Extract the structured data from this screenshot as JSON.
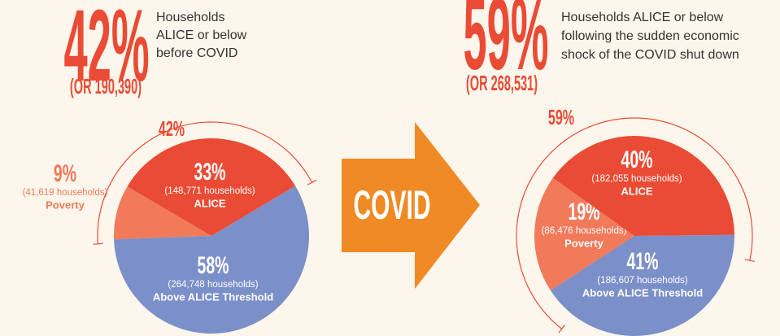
{
  "chart_data": [
    {
      "type": "pie",
      "headline": "42%",
      "headline_sub": "(OR 190,390)",
      "description": [
        "Households",
        "ALICE or below",
        "before COVID"
      ],
      "bracket_label": "42%",
      "categories": [
        "Poverty",
        "ALICE",
        "Above ALICE Threshold"
      ],
      "values": [
        9,
        33,
        58
      ],
      "value_labels": [
        "9%",
        "33%",
        "58%"
      ],
      "sublabels": [
        "(41,619 households)",
        "(148,771 households)",
        "(264,748 households)"
      ],
      "colors": [
        "#f07a5a",
        "#ea4b35",
        "#7b8fc9"
      ]
    },
    {
      "type": "pie",
      "headline": "59%",
      "headline_sub": "(OR 268,531)",
      "description": [
        "Households ALICE or below",
        "following the sudden economic",
        "shock of the COVID shut down"
      ],
      "bracket_label": "59%",
      "categories": [
        "Poverty",
        "ALICE",
        "Above ALICE Threshold"
      ],
      "values": [
        19,
        40,
        41
      ],
      "value_labels": [
        "19%",
        "40%",
        "41%"
      ],
      "sublabels": [
        "(86,476 households)",
        "(182,055 households)",
        "(186,607 households)"
      ],
      "colors": [
        "#f07a5a",
        "#ea4b35",
        "#7b8fc9"
      ]
    }
  ],
  "arrow": {
    "label": "COVID"
  }
}
